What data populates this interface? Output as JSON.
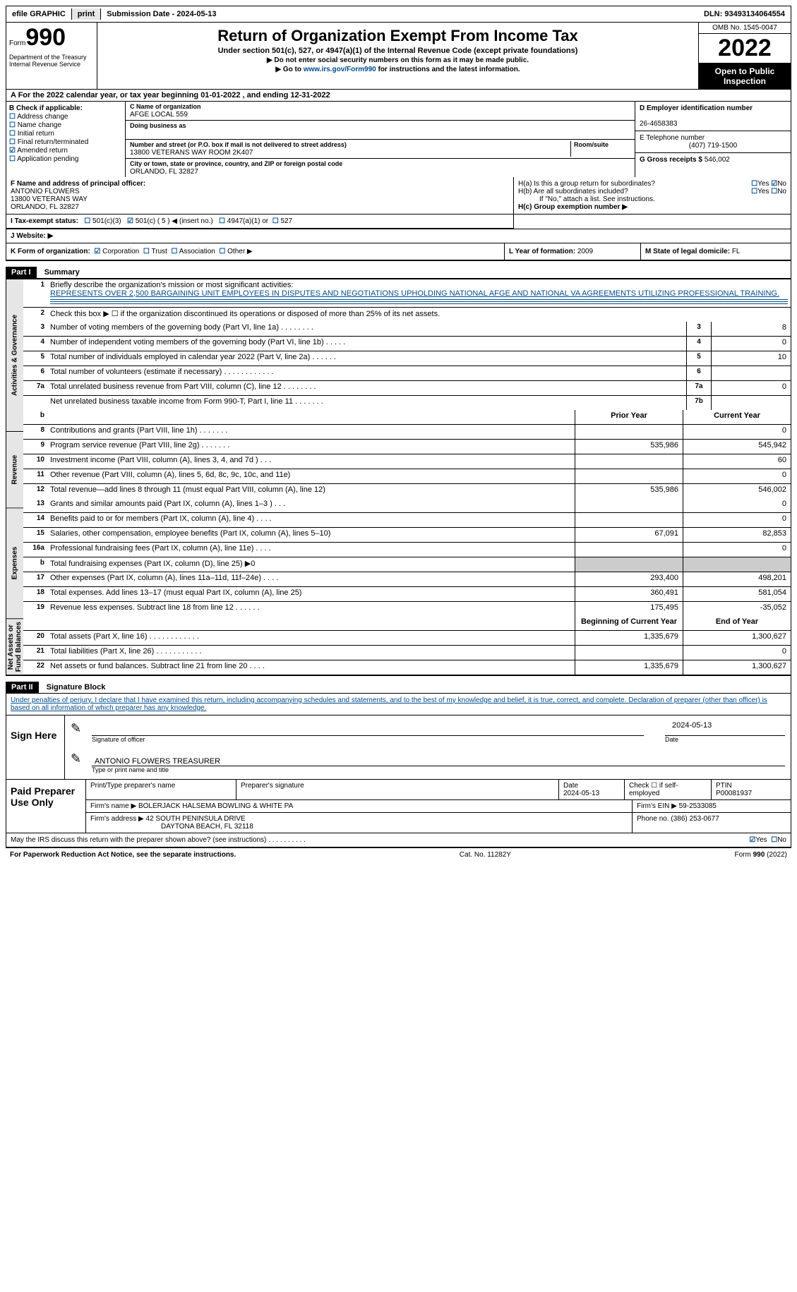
{
  "topbar": {
    "efile": "efile GRAPHIC",
    "print": "print",
    "submission": "Submission Date - 2024-05-13",
    "dln": "DLN: 93493134064554"
  },
  "header": {
    "form_label": "Form",
    "form_number": "990",
    "dept": "Department of the Treasury\nInternal Revenue Service",
    "title": "Return of Organization Exempt From Income Tax",
    "subtitle": "Under section 501(c), 527, or 4947(a)(1) of the Internal Revenue Code (except private foundations)",
    "instr1": "▶ Do not enter social security numbers on this form as it may be made public.",
    "instr2_pre": "▶ Go to ",
    "instr2_link": "www.irs.gov/Form990",
    "instr2_post": " for instructions and the latest information.",
    "omb": "OMB No. 1545-0047",
    "year": "2022",
    "open": "Open to Public Inspection"
  },
  "sectionA": {
    "text": "A  For the 2022 calendar year, or tax year beginning 01-01-2022    , and ending 12-31-2022"
  },
  "colB": {
    "label": "B Check if applicable:",
    "items": [
      "Address change",
      "Name change",
      "Initial return",
      "Final return/terminated",
      "Amended return",
      "Application pending"
    ],
    "checked_index": 4
  },
  "colC": {
    "name_lbl": "C Name of organization",
    "name": "AFGE LOCAL 559",
    "dba_lbl": "Doing business as",
    "addr_lbl": "Number and street (or P.O. box if mail is not delivered to street address)",
    "addr": "13800 VETERANS WAY ROOM 2K407",
    "room_lbl": "Room/suite",
    "city_lbl": "City or town, state or province, country, and ZIP or foreign postal code",
    "city": "ORLANDO, FL  32827"
  },
  "colDE": {
    "d_lbl": "D Employer identification number",
    "d_val": "26-4658383",
    "e_lbl": "E Telephone number",
    "e_val": "(407) 719-1500",
    "g_lbl": "G Gross receipts $",
    "g_val": "546,002"
  },
  "rowF": {
    "lbl": "F  Name and address of principal officer:",
    "name": "ANTONIO FLOWERS",
    "addr1": "13800 VETERANS WAY",
    "addr2": "ORLANDO, FL  32827"
  },
  "rowH": {
    "ha": "H(a)  Is this a group return for subordinates?",
    "hb": "H(b)  Are all subordinates included?",
    "hb_note": "If \"No,\" attach a list. See instructions.",
    "hc": "H(c)  Group exemption number ▶",
    "yes": "Yes",
    "no": "No"
  },
  "rowI": {
    "lbl": "I   Tax-exempt status:",
    "c3": "501(c)(3)",
    "c": "501(c) ( 5 ) ◀ (insert no.)",
    "a4947": "4947(a)(1) or",
    "c527": "527"
  },
  "rowJ": {
    "lbl": "J   Website: ▶"
  },
  "rowK": {
    "lbl": "K Form of organization:",
    "corp": "Corporation",
    "trust": "Trust",
    "assoc": "Association",
    "other": "Other ▶"
  },
  "rowL": {
    "lbl": "L Year of formation:",
    "val": "2009"
  },
  "rowM": {
    "lbl": "M State of legal domicile:",
    "val": "FL"
  },
  "part1": {
    "hdr": "Part I",
    "title": "Summary",
    "line1_lbl": "Briefly describe the organization's mission or most significant activities:",
    "line1_val": "REPRESENTS OVER 2,500 BARGAINING UNIT EMPLOYEES IN DISPUTES AND NEGOTIATIONS UPHOLDING NATIONAL AFGE AND NATIONAL VA AGREEMENTS UTILIZING PROFESSIONAL TRAINING.",
    "line2": "Check this box ▶ ☐ if the organization discontinued its operations or disposed of more than 25% of its net assets.",
    "lines_top": [
      {
        "n": "3",
        "d": "Number of voting members of the governing body (Part VI, line 1a)   .    .    .    .    .    .    .    .",
        "r": "3",
        "v": "8"
      },
      {
        "n": "4",
        "d": "Number of independent voting members of the governing body (Part VI, line 1b)   .    .    .    .    .",
        "r": "4",
        "v": "0"
      },
      {
        "n": "5",
        "d": "Total number of individuals employed in calendar year 2022 (Part V, line 2a)   .    .    .    .    .    .",
        "r": "5",
        "v": "10"
      },
      {
        "n": "6",
        "d": "Total number of volunteers (estimate if necessary)    .    .    .    .    .    .    .    .    .    .    .    .",
        "r": "6",
        "v": ""
      },
      {
        "n": "7a",
        "d": "Total unrelated business revenue from Part VIII, column (C), line 12   .    .    .    .    .    .    .    .",
        "r": "7a",
        "v": "0"
      },
      {
        "n": "",
        "d": "Net unrelated business taxable income from Form 990-T, Part I, line 11   .    .    .    .    .    .    .",
        "r": "7b",
        "v": ""
      }
    ],
    "col_hdrs": {
      "prior": "Prior Year",
      "current": "Current Year",
      "begin": "Beginning of Current Year",
      "end": "End of Year"
    },
    "revenue": [
      {
        "n": "8",
        "d": "Contributions and grants (Part VIII, line 1h)     .    .    .    .    .    .    .",
        "p": "",
        "c": "0"
      },
      {
        "n": "9",
        "d": "Program service revenue (Part VIII, line 2g)    .    .    .    .    .    .    .",
        "p": "535,986",
        "c": "545,942"
      },
      {
        "n": "10",
        "d": "Investment income (Part VIII, column (A), lines 3, 4, and 7d )    .    .    .",
        "p": "",
        "c": "60"
      },
      {
        "n": "11",
        "d": "Other revenue (Part VIII, column (A), lines 5, 6d, 8c, 9c, 10c, and 11e)",
        "p": "",
        "c": "0"
      },
      {
        "n": "12",
        "d": "Total revenue—add lines 8 through 11 (must equal Part VIII, column (A), line 12)",
        "p": "535,986",
        "c": "546,002"
      }
    ],
    "expenses": [
      {
        "n": "13",
        "d": "Grants and similar amounts paid (Part IX, column (A), lines 1–3 )  .    .    .",
        "p": "",
        "c": "0"
      },
      {
        "n": "14",
        "d": "Benefits paid to or for members (Part IX, column (A), line 4)   .    .    .    .",
        "p": "",
        "c": "0"
      },
      {
        "n": "15",
        "d": "Salaries, other compensation, employee benefits (Part IX, column (A), lines 5–10)",
        "p": "67,091",
        "c": "82,853"
      },
      {
        "n": "16a",
        "d": "Professional fundraising fees (Part IX, column (A), line 11e)    .    .    .    .",
        "p": "",
        "c": "0"
      },
      {
        "n": "b",
        "d": "Total fundraising expenses (Part IX, column (D), line 25) ▶0",
        "p": "__gray__",
        "c": "__gray__"
      },
      {
        "n": "17",
        "d": "Other expenses (Part IX, column (A), lines 11a–11d, 11f–24e)  .    .    .    .",
        "p": "293,400",
        "c": "498,201"
      },
      {
        "n": "18",
        "d": "Total expenses. Add lines 13–17 (must equal Part IX, column (A), line 25)",
        "p": "360,491",
        "c": "581,054"
      },
      {
        "n": "19",
        "d": "Revenue less expenses. Subtract line 18 from line 12   .    .    .    .    .    .",
        "p": "175,495",
        "c": "-35,052"
      }
    ],
    "netassets": [
      {
        "n": "20",
        "d": "Total assets (Part X, line 16)   .    .    .    .    .    .    .    .    .    .    .    .",
        "p": "1,335,679",
        "c": "1,300,627"
      },
      {
        "n": "21",
        "d": "Total liabilities (Part X, line 26)    .    .    .    .    .    .    .    .    .    .    .",
        "p": "",
        "c": "0"
      },
      {
        "n": "22",
        "d": "Net assets or fund balances. Subtract line 21 from line 20     .    .    .    .",
        "p": "1,335,679",
        "c": "1,300,627"
      }
    ],
    "side_labels": {
      "act": "Activities & Governance",
      "rev": "Revenue",
      "exp": "Expenses",
      "net": "Net Assets or Fund Balances"
    }
  },
  "part2": {
    "hdr": "Part II",
    "title": "Signature Block",
    "decl": "Under penalties of perjury, I declare that I have examined this return, including accompanying schedules and statements, and to the best of my knowledge and belief, it is true, correct, and complete. Declaration of preparer (other than officer) is based on all information of which preparer has any knowledge.",
    "sign_here": "Sign Here",
    "sig_officer": "Signature of officer",
    "sig_date": "2024-05-13",
    "date_lbl": "Date",
    "name_title": "ANTONIO FLOWERS  TREASURER",
    "type_lbl": "Type or print name and title"
  },
  "prep": {
    "hdr": "Paid Preparer Use Only",
    "pt_name_lbl": "Print/Type preparer's name",
    "sig_lbl": "Preparer's signature",
    "date_lbl": "Date",
    "date_val": "2024-05-13",
    "self_lbl": "Check ☐ if self-employed",
    "ptin_lbl": "PTIN",
    "ptin_val": "P00081937",
    "firm_name_lbl": "Firm's name      ▶",
    "firm_name": "BOLERJACK HALSEMA BOWLING & WHITE PA",
    "firm_ein_lbl": "Firm's EIN ▶",
    "firm_ein": "59-2533085",
    "firm_addr_lbl": "Firm's address ▶",
    "firm_addr1": "42 SOUTH PENINSULA DRIVE",
    "firm_addr2": "DAYTONA BEACH, FL  32118",
    "phone_lbl": "Phone no.",
    "phone_val": "(386) 253-0677"
  },
  "bottom": {
    "q": "May the IRS discuss this return with the preparer shown above? (see instructions)     .    .    .    .    .    .    .    .    .    .",
    "yes": "Yes",
    "no": "No",
    "paperwork": "For Paperwork Reduction Act Notice, see the separate instructions.",
    "cat": "Cat. No. 11282Y",
    "form": "Form 990 (2022)"
  }
}
